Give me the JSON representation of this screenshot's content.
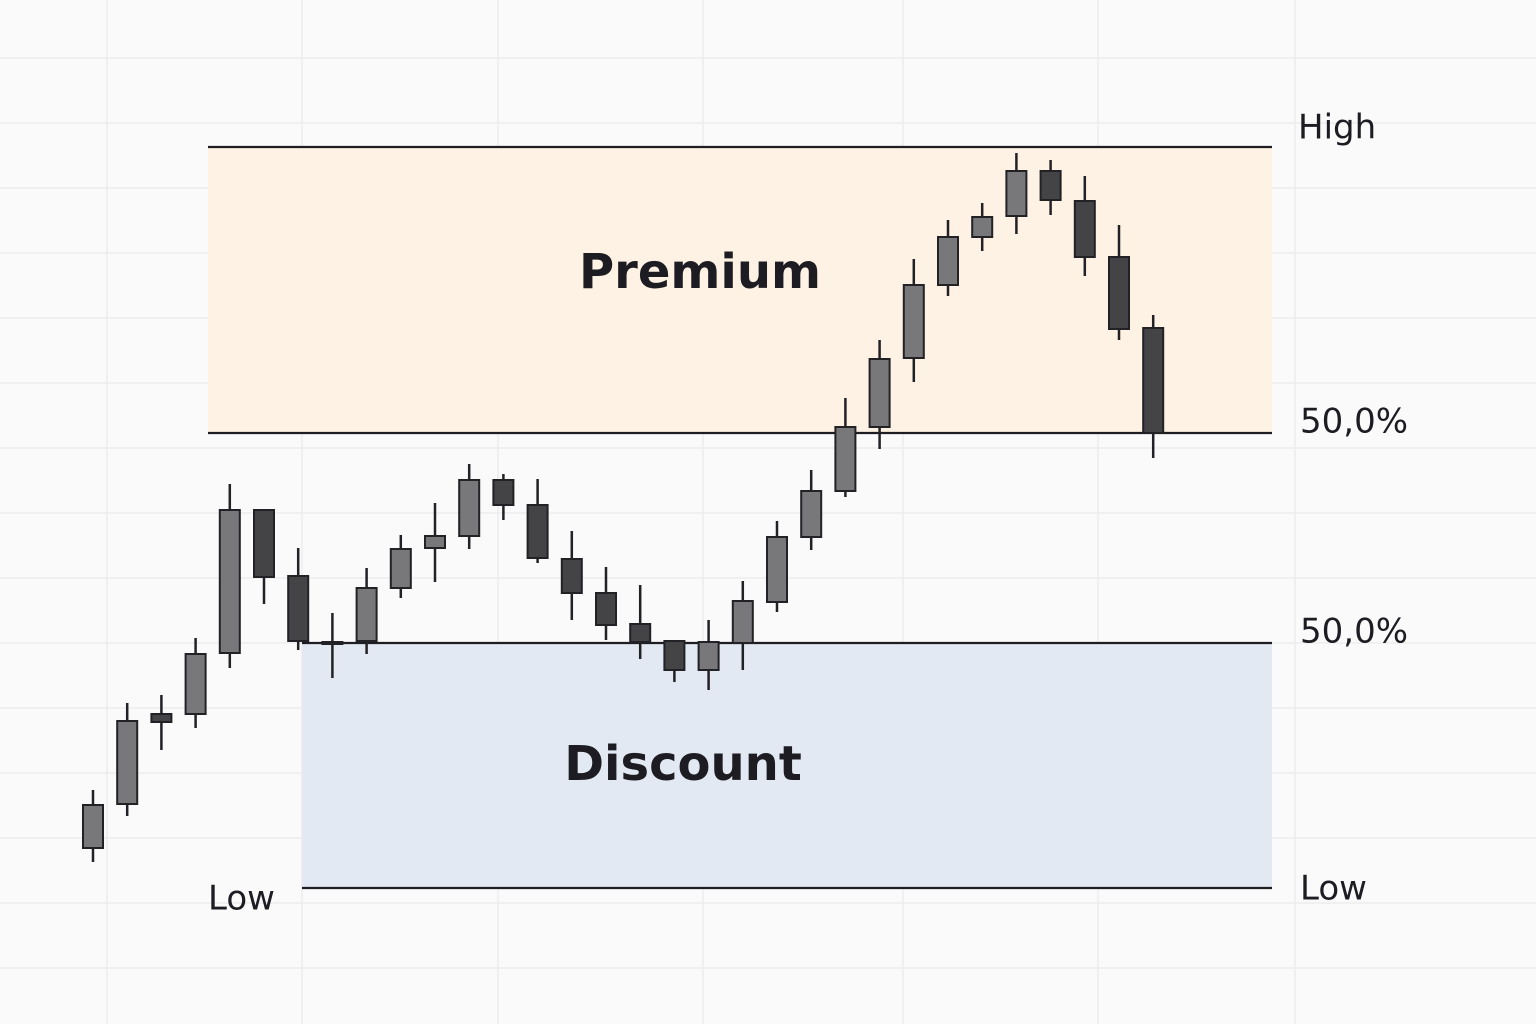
{
  "chart_data": {
    "type": "candlestick",
    "zone_labels": [
      "Premium",
      "Discount"
    ],
    "side_label": "Low",
    "levels": [
      {
        "label": "High",
        "value": 741
      },
      {
        "label": "50,0%",
        "value": 455
      },
      {
        "label": "50,0%",
        "value": 245
      },
      {
        "label": "Low",
        "value": 0
      }
    ],
    "ylim": [
      0,
      741
    ],
    "open": [
      40,
      84,
      174,
      174,
      235,
      378,
      312,
      246,
      247,
      300,
      340,
      352,
      408,
      383,
      329,
      295,
      264,
      247,
      218,
      245,
      286,
      351,
      397,
      461,
      530,
      603,
      651,
      672,
      717,
      687,
      631,
      560
    ],
    "high": [
      98,
      185,
      193,
      250,
      404,
      378,
      340,
      275,
      320,
      353,
      385,
      424,
      414,
      409,
      357,
      321,
      303,
      248,
      268,
      307,
      367,
      418,
      490,
      548,
      629,
      668,
      685,
      735,
      728,
      712,
      663,
      573
    ],
    "low": [
      26,
      72,
      138,
      160,
      220,
      284,
      238,
      210,
      234,
      290,
      306,
      339,
      368,
      325,
      268,
      248,
      229,
      206,
      198,
      218,
      276,
      338,
      391,
      439,
      506,
      592,
      637,
      654,
      673,
      612,
      548,
      430
    ],
    "close": [
      83,
      167,
      166,
      234,
      378,
      311,
      247,
      244,
      300,
      339,
      352,
      408,
      383,
      330,
      295,
      263,
      246,
      218,
      246,
      287,
      351,
      397,
      461,
      529,
      603,
      651,
      671,
      717,
      688,
      631,
      559,
      455
    ],
    "up_color": "#78787b",
    "down_color": "#444447",
    "premium_color": "#fdf2e3",
    "discount_color": "#e2e9f2"
  }
}
